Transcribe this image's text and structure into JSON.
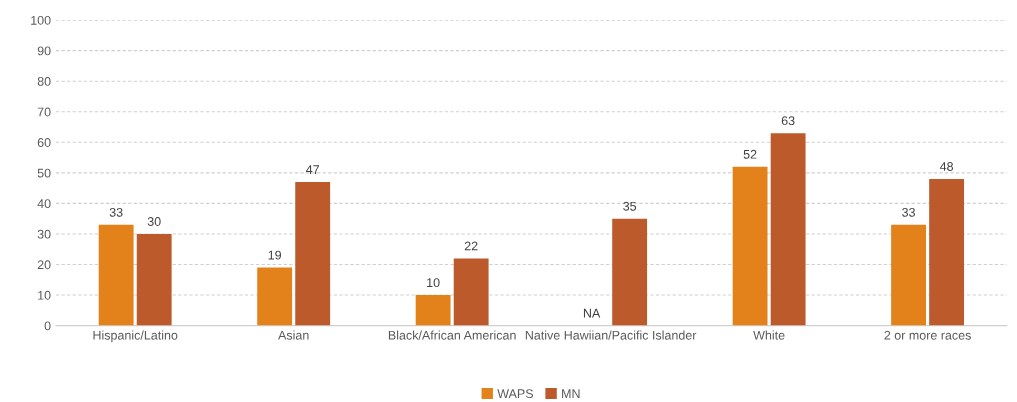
{
  "chart_data": {
    "type": "bar",
    "categories": [
      "Hispanic/Latino",
      "Asian",
      "Black/African American",
      "Native Hawiian/Pacific Islander",
      "White",
      "2 or more races"
    ],
    "series": [
      {
        "name": "WAPS",
        "color": "#e3821a",
        "values": [
          33,
          19,
          10,
          null,
          52,
          33
        ],
        "value_labels": [
          "33",
          "19",
          "10",
          "NA",
          "52",
          "33"
        ]
      },
      {
        "name": "MN",
        "color": "#bd5a2c",
        "values": [
          30,
          47,
          22,
          35,
          63,
          48
        ],
        "value_labels": [
          "30",
          "47",
          "22",
          "35",
          "63",
          "48"
        ]
      }
    ],
    "ylim": [
      0,
      100
    ],
    "yticks": [
      0,
      10,
      20,
      30,
      40,
      50,
      60,
      70,
      80,
      90,
      100
    ],
    "grid": "y",
    "legend": "bottom"
  }
}
